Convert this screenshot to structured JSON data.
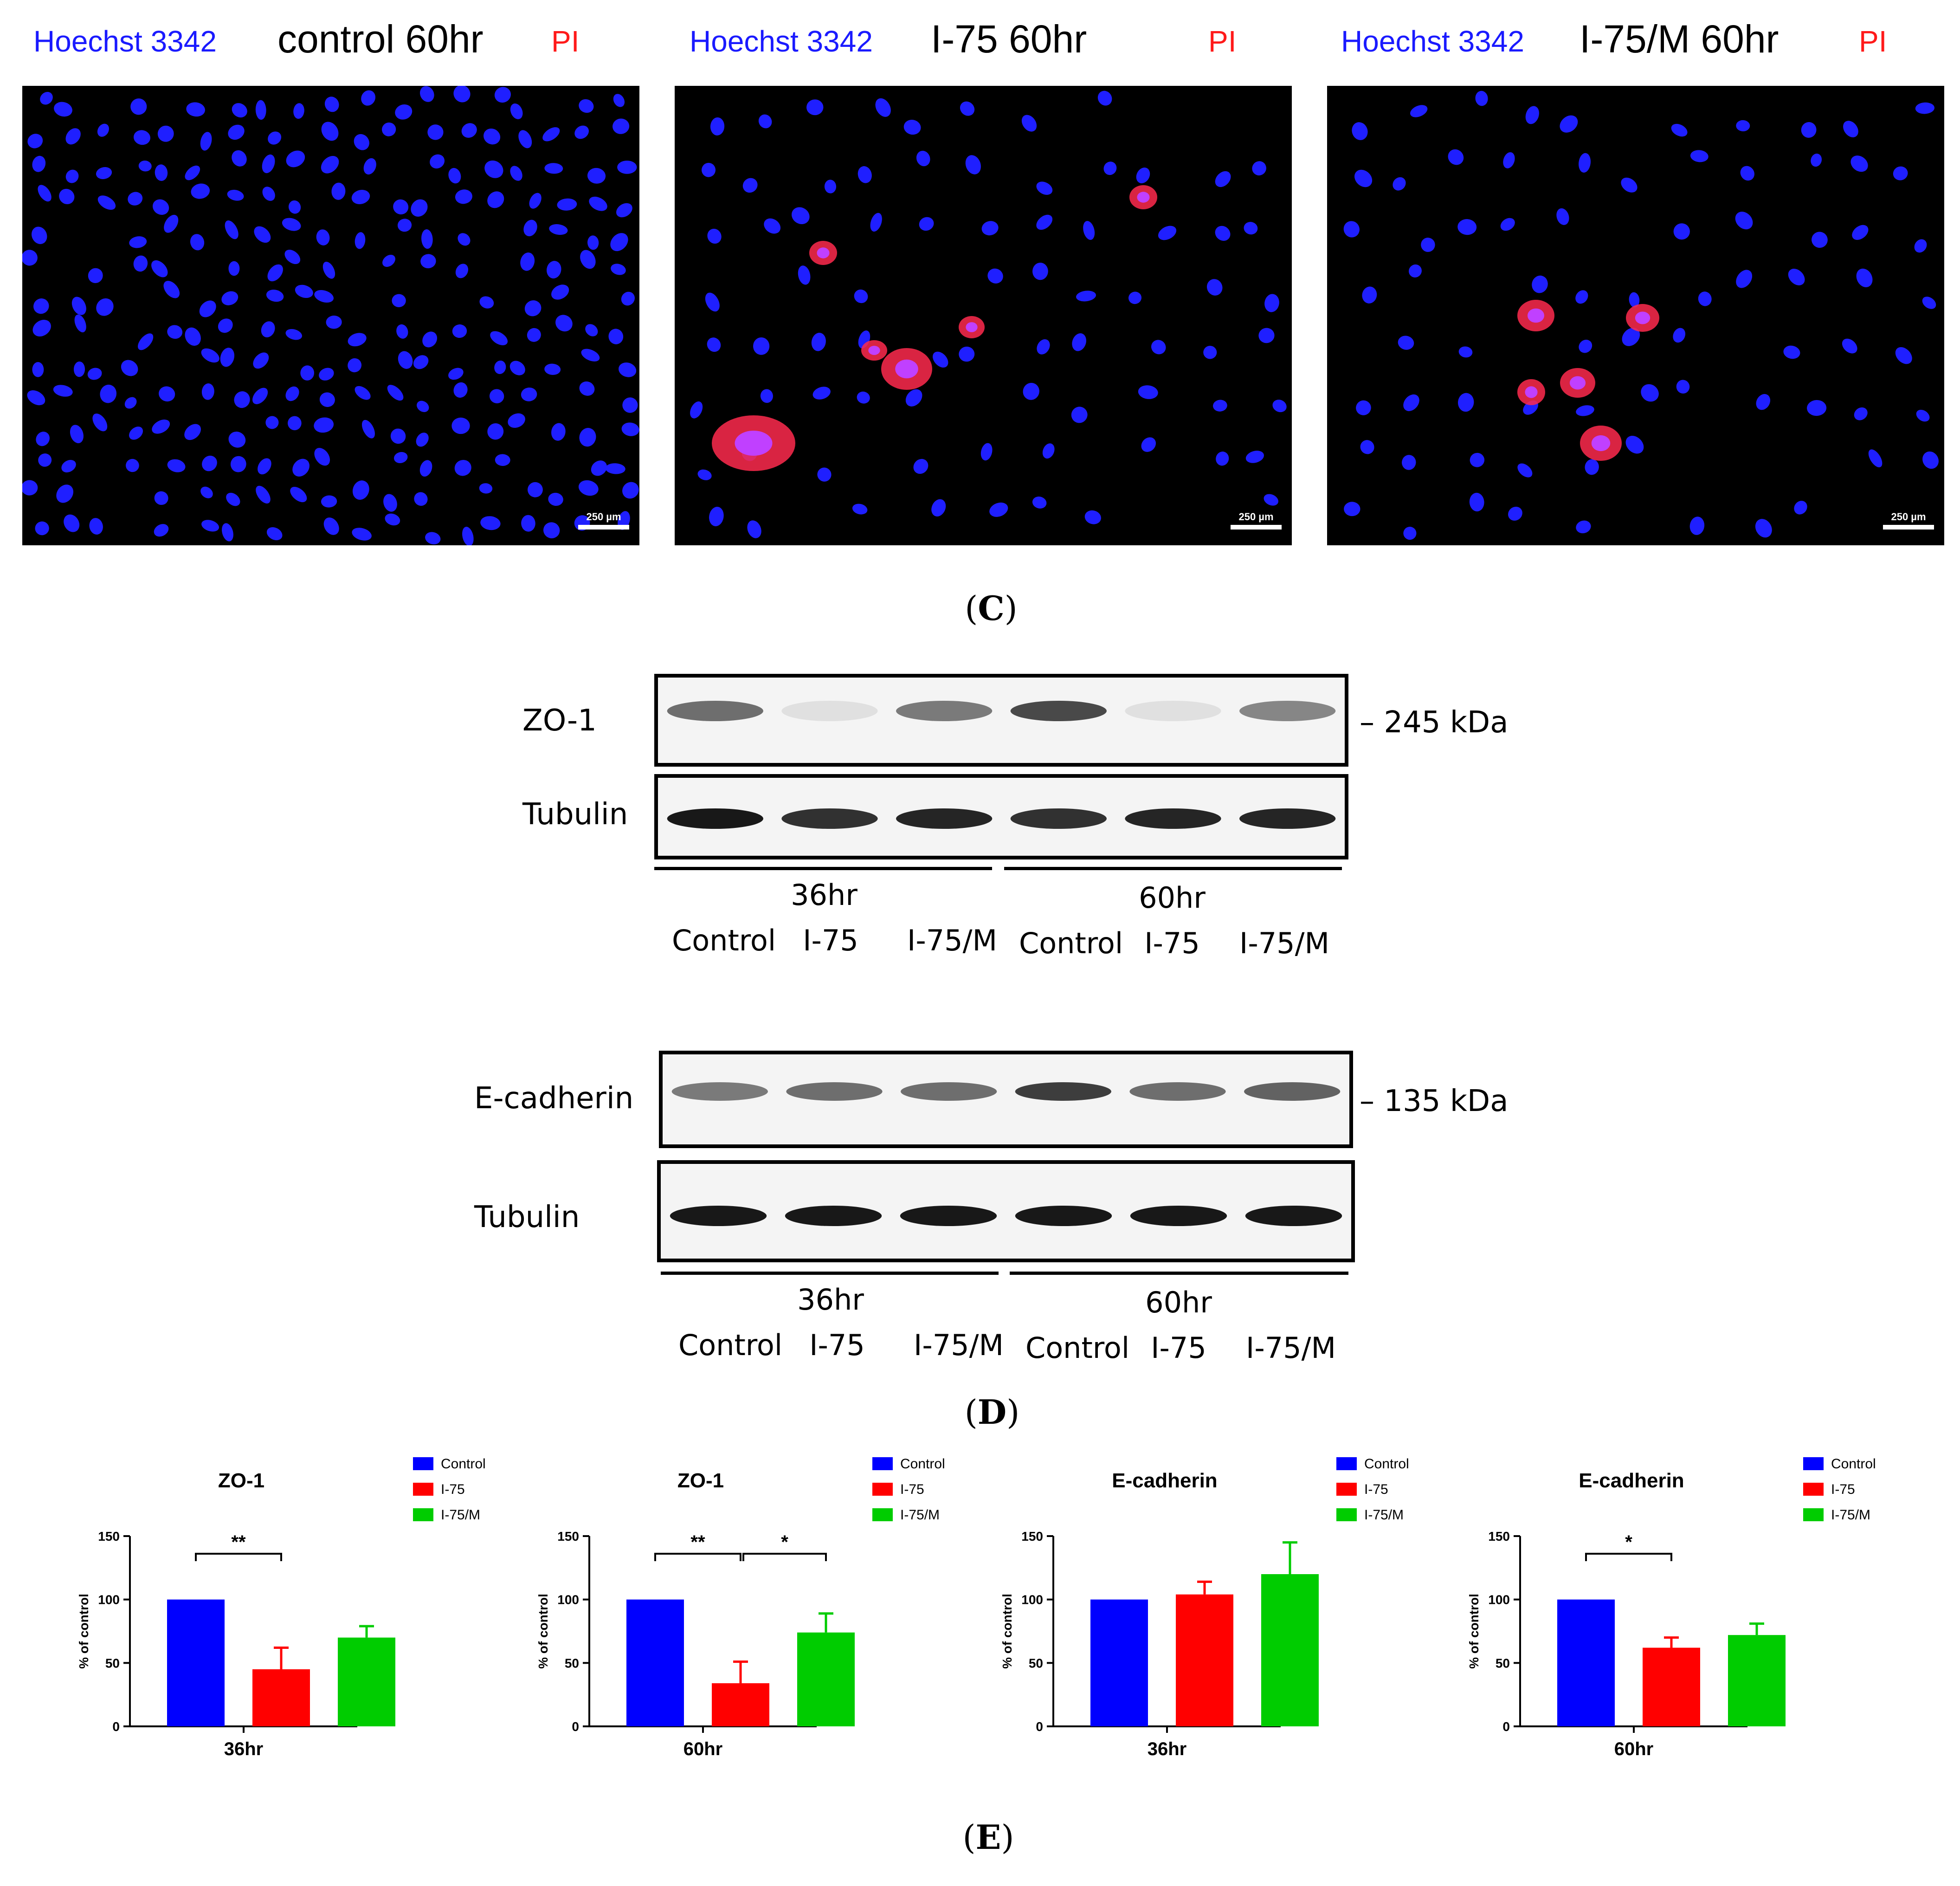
{
  "panel_c": {
    "panels": [
      {
        "left_label": "Hoechst 3342",
        "title": "control 60hr",
        "right_label": "PI",
        "scale": "250 µm"
      },
      {
        "left_label": "Hoechst 3342",
        "title": "I-75 60hr",
        "right_label": "PI",
        "scale": "250 µm"
      },
      {
        "left_label": "Hoechst 3342",
        "title": "I-75/M 60hr",
        "right_label": "PI",
        "scale": "250 µm"
      }
    ],
    "letter_open": "(",
    "letter": "C",
    "letter_close": ")"
  },
  "panel_d": {
    "blots": [
      {
        "protein": "ZO-1",
        "loading": "Tubulin",
        "marker": "– 245 kDa",
        "time1": "36hr",
        "time2": "60hr",
        "lanes": [
          "Control",
          "I-75",
          "I-75/M",
          "Control",
          "I-75",
          "I-75/M"
        ]
      },
      {
        "protein": "E-cadherin",
        "loading": "Tubulin",
        "marker": "– 135 kDa",
        "time1": "36hr",
        "time2": "60hr",
        "lanes": [
          "Control",
          "I-75",
          "I-75/M",
          "Control",
          "I-75",
          "I-75/M"
        ]
      }
    ],
    "letter_open": "(",
    "letter": "D",
    "letter_close": ")"
  },
  "panel_e": {
    "letter_open": "(",
    "letter": "E",
    "letter_close": ")"
  },
  "colors": {
    "control": "#0000ff",
    "i75": "#ff0000",
    "i75m": "#00cc00",
    "nucleus": "#1f1fff",
    "pi": "#ff2a4d"
  },
  "chart_data": [
    {
      "type": "bar",
      "title": "ZO-1",
      "xlabel": "36hr",
      "ylabel": "% of control",
      "categories": [
        "Control",
        "I-75",
        "I-75/M"
      ],
      "values": [
        100,
        45,
        70
      ],
      "errors": [
        0,
        17,
        9
      ],
      "ylim": [
        0,
        150
      ],
      "yticks": [
        "0",
        "50",
        "100",
        "150"
      ],
      "legend": "top-right",
      "significance": [
        {
          "from": 0,
          "to": 1,
          "label": "**"
        }
      ]
    },
    {
      "type": "bar",
      "title": "ZO-1",
      "xlabel": "60hr",
      "ylabel": "% of control",
      "categories": [
        "Control",
        "I-75",
        "I-75/M"
      ],
      "values": [
        100,
        34,
        74
      ],
      "errors": [
        0,
        17,
        15
      ],
      "ylim": [
        0,
        150
      ],
      "yticks": [
        "0",
        "50",
        "100",
        "150"
      ],
      "legend": "top-right",
      "significance": [
        {
          "from": 0,
          "to": 1,
          "label": "**"
        },
        {
          "from": 1,
          "to": 2,
          "label": "*"
        }
      ]
    },
    {
      "type": "bar",
      "title": "E-cadherin",
      "xlabel": "36hr",
      "ylabel": "% of control",
      "categories": [
        "Control",
        "I-75",
        "I-75/M"
      ],
      "values": [
        100,
        104,
        120
      ],
      "errors": [
        0,
        10,
        25
      ],
      "ylim": [
        0,
        150
      ],
      "yticks": [
        "0",
        "50",
        "100",
        "150"
      ],
      "legend": "top-right",
      "significance": []
    },
    {
      "type": "bar",
      "title": "E-cadherin",
      "xlabel": "60hr",
      "ylabel": "% of control",
      "categories": [
        "Control",
        "I-75",
        "I-75/M"
      ],
      "values": [
        100,
        62,
        72
      ],
      "errors": [
        0,
        8,
        9
      ],
      "ylim": [
        0,
        150
      ],
      "yticks": [
        "0",
        "50",
        "100",
        "150"
      ],
      "legend": "top-right",
      "significance": [
        {
          "from": 0,
          "to": 1,
          "label": "*"
        }
      ]
    }
  ]
}
